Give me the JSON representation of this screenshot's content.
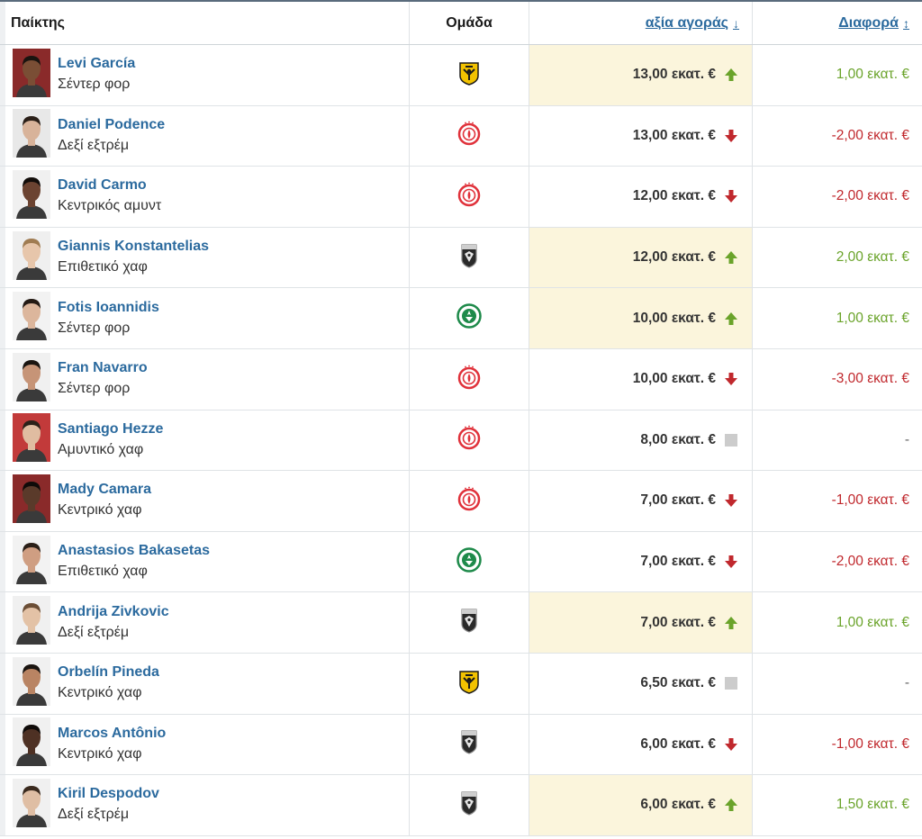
{
  "header": {
    "player": "Παίκτης",
    "club": "Ομάδα",
    "value": "αξία αγοράς",
    "diff": "Διαφορά",
    "value_sort": "↓",
    "diff_sort": "↕"
  },
  "colors": {
    "up": "#6aa32a",
    "down": "#c0282d",
    "neutral": "#cccccc",
    "highlight": "#fbf5dc",
    "link": "#2b6a9e"
  },
  "rows": [
    {
      "name": "Levi García",
      "position": "Σέντερ φορ",
      "club_icon": "aek-crest-icon",
      "value": "13,00 εκατ. €",
      "trend": "up",
      "diff": "1,00 εκατ. €"
    },
    {
      "name": "Daniel Podence",
      "position": "Δεξί εξτρέμ",
      "club_icon": "olympiacos-crest-icon",
      "value": "13,00 εκατ. €",
      "trend": "down",
      "diff": "-2,00 εκατ. €"
    },
    {
      "name": "David Carmo",
      "position": "Κεντρικός αμυντ",
      "club_icon": "olympiacos-crest-icon",
      "value": "12,00 εκατ. €",
      "trend": "down",
      "diff": "-2,00 εκατ. €"
    },
    {
      "name": "Giannis Konstantelias",
      "position": "Επιθετικό χαφ",
      "club_icon": "paok-crest-icon",
      "value": "12,00 εκατ. €",
      "trend": "up",
      "diff": "2,00 εκατ. €"
    },
    {
      "name": "Fotis Ioannidis",
      "position": "Σέντερ φορ",
      "club_icon": "panathinaikos-crest-icon",
      "value": "10,00 εκατ. €",
      "trend": "up",
      "diff": "1,00 εκατ. €"
    },
    {
      "name": "Fran Navarro",
      "position": "Σέντερ φορ",
      "club_icon": "olympiacos-crest-icon",
      "value": "10,00 εκατ. €",
      "trend": "down",
      "diff": "-3,00 εκατ. €"
    },
    {
      "name": "Santiago Hezze",
      "position": "Αμυντικό χαφ",
      "club_icon": "olympiacos-crest-icon",
      "value": "8,00 εκατ. €",
      "trend": "none",
      "diff": "-"
    },
    {
      "name": "Mady Camara",
      "position": "Κεντρικό χαφ",
      "club_icon": "olympiacos-crest-icon",
      "value": "7,00 εκατ. €",
      "trend": "down",
      "diff": "-1,00 εκατ. €"
    },
    {
      "name": "Anastasios Bakasetas",
      "position": "Επιθετικό χαφ",
      "club_icon": "panathinaikos-crest-icon",
      "value": "7,00 εκατ. €",
      "trend": "down",
      "diff": "-2,00 εκατ. €"
    },
    {
      "name": "Andrija Zivkovic",
      "position": "Δεξί εξτρέμ",
      "club_icon": "paok-crest-icon",
      "value": "7,00 εκατ. €",
      "trend": "up",
      "diff": "1,00 εκατ. €"
    },
    {
      "name": "Orbelín Pineda",
      "position": "Κεντρικό χαφ",
      "club_icon": "aek-crest-icon",
      "value": "6,50 εκατ. €",
      "trend": "none",
      "diff": "-"
    },
    {
      "name": "Marcos Antônio",
      "position": "Κεντρικό χαφ",
      "club_icon": "paok-crest-icon",
      "value": "6,00 εκατ. €",
      "trend": "down",
      "diff": "-1,00 εκατ. €"
    },
    {
      "name": "Kiril Despodov",
      "position": "Δεξί εξτρέμ",
      "club_icon": "paok-crest-icon",
      "value": "6,00 εκατ. €",
      "trend": "up",
      "diff": "1,50 εκατ. €"
    }
  ]
}
